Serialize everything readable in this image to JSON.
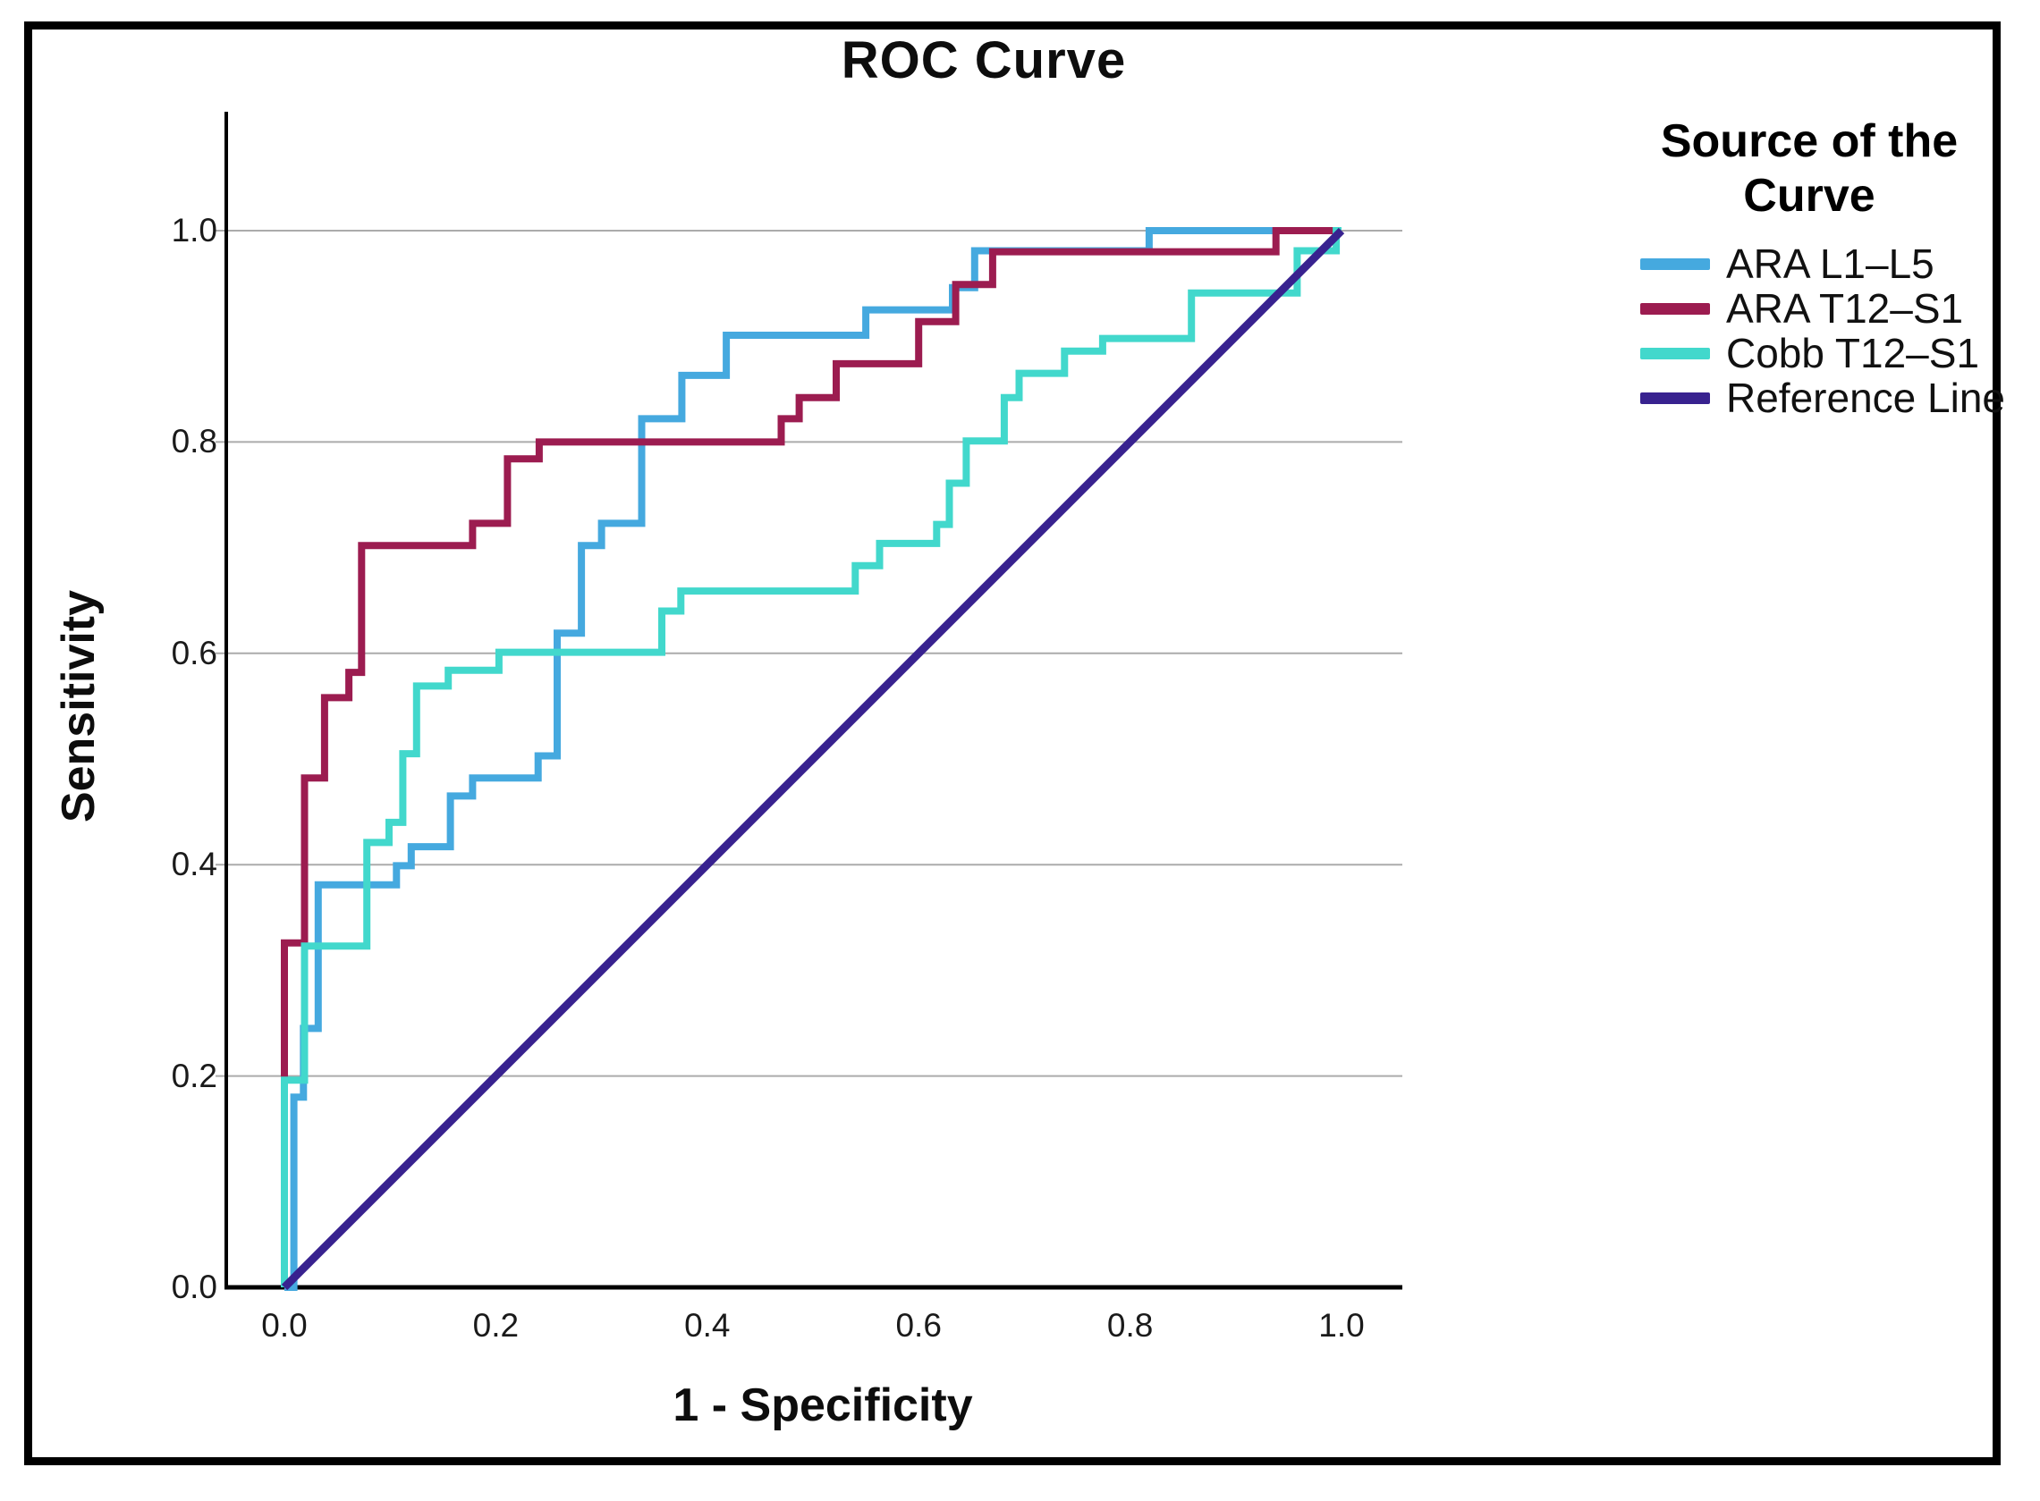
{
  "chart_data": {
    "type": "line",
    "subtype": "roc-step-curves",
    "title": "ROC Curve",
    "xlabel": "1 - Specificity",
    "ylabel": "Sensitivity",
    "xlim": [
      0,
      1
    ],
    "ylim": [
      0,
      1
    ],
    "x_ticks": [
      "0.0",
      "0.2",
      "0.4",
      "0.6",
      "0.8",
      "1.0"
    ],
    "y_ticks": [
      "0.0",
      "0.2",
      "0.4",
      "0.6",
      "0.8",
      "1.0"
    ],
    "grid": "horizontal-only",
    "gridline_color": "#ABABAB",
    "axis_color": "#000000",
    "legend": {
      "title": "Source of the Curve",
      "position": "right"
    },
    "series": [
      {
        "name": "ARA L1–L5",
        "color": "#45A9DF",
        "step_points": [
          [
            0,
            0
          ],
          [
            0.009,
            0
          ],
          [
            0.009,
            0.18
          ],
          [
            0.018,
            0.18
          ],
          [
            0.018,
            0.245
          ],
          [
            0.032,
            0.245
          ],
          [
            0.032,
            0.381
          ],
          [
            0.106,
            0.381
          ],
          [
            0.106,
            0.399
          ],
          [
            0.12,
            0.399
          ],
          [
            0.12,
            0.417
          ],
          [
            0.157,
            0.417
          ],
          [
            0.157,
            0.465
          ],
          [
            0.178,
            0.465
          ],
          [
            0.178,
            0.482
          ],
          [
            0.24,
            0.482
          ],
          [
            0.24,
            0.503
          ],
          [
            0.258,
            0.503
          ],
          [
            0.258,
            0.619
          ],
          [
            0.281,
            0.619
          ],
          [
            0.281,
            0.702
          ],
          [
            0.3,
            0.702
          ],
          [
            0.3,
            0.723
          ],
          [
            0.338,
            0.723
          ],
          [
            0.338,
            0.822
          ],
          [
            0.376,
            0.822
          ],
          [
            0.376,
            0.863
          ],
          [
            0.418,
            0.863
          ],
          [
            0.418,
            0.901
          ],
          [
            0.55,
            0.901
          ],
          [
            0.55,
            0.925
          ],
          [
            0.632,
            0.925
          ],
          [
            0.632,
            0.946
          ],
          [
            0.653,
            0.946
          ],
          [
            0.653,
            0.981
          ],
          [
            0.818,
            0.981
          ],
          [
            0.818,
            1
          ],
          [
            1,
            1
          ]
        ]
      },
      {
        "name": "ARA T12–S1",
        "color": "#9C1C50",
        "step_points": [
          [
            0,
            0
          ],
          [
            0,
            0.326
          ],
          [
            0.019,
            0.326
          ],
          [
            0.019,
            0.482
          ],
          [
            0.038,
            0.482
          ],
          [
            0.038,
            0.558
          ],
          [
            0.061,
            0.558
          ],
          [
            0.061,
            0.582
          ],
          [
            0.073,
            0.582
          ],
          [
            0.073,
            0.702
          ],
          [
            0.178,
            0.702
          ],
          [
            0.178,
            0.723
          ],
          [
            0.211,
            0.723
          ],
          [
            0.211,
            0.784
          ],
          [
            0.241,
            0.784
          ],
          [
            0.241,
            0.8
          ],
          [
            0.47,
            0.8
          ],
          [
            0.47,
            0.822
          ],
          [
            0.487,
            0.822
          ],
          [
            0.487,
            0.842
          ],
          [
            0.522,
            0.842
          ],
          [
            0.522,
            0.874
          ],
          [
            0.6,
            0.874
          ],
          [
            0.6,
            0.914
          ],
          [
            0.635,
            0.914
          ],
          [
            0.635,
            0.949
          ],
          [
            0.67,
            0.949
          ],
          [
            0.67,
            0.98
          ],
          [
            0.938,
            0.98
          ],
          [
            0.938,
            1
          ],
          [
            1,
            1
          ]
        ]
      },
      {
        "name": "Cobb T12–S1",
        "color": "#42D8CC",
        "step_points": [
          [
            0,
            0
          ],
          [
            0,
            0.196
          ],
          [
            0.019,
            0.196
          ],
          [
            0.019,
            0.323
          ],
          [
            0.078,
            0.323
          ],
          [
            0.078,
            0.421
          ],
          [
            0.099,
            0.421
          ],
          [
            0.099,
            0.44
          ],
          [
            0.112,
            0.44
          ],
          [
            0.112,
            0.505
          ],
          [
            0.125,
            0.505
          ],
          [
            0.125,
            0.569
          ],
          [
            0.155,
            0.569
          ],
          [
            0.155,
            0.584
          ],
          [
            0.203,
            0.584
          ],
          [
            0.203,
            0.601
          ],
          [
            0.357,
            0.601
          ],
          [
            0.357,
            0.64
          ],
          [
            0.375,
            0.64
          ],
          [
            0.375,
            0.659
          ],
          [
            0.54,
            0.659
          ],
          [
            0.54,
            0.683
          ],
          [
            0.563,
            0.683
          ],
          [
            0.563,
            0.704
          ],
          [
            0.617,
            0.704
          ],
          [
            0.617,
            0.722
          ],
          [
            0.629,
            0.722
          ],
          [
            0.629,
            0.761
          ],
          [
            0.645,
            0.761
          ],
          [
            0.645,
            0.801
          ],
          [
            0.681,
            0.801
          ],
          [
            0.681,
            0.842
          ],
          [
            0.695,
            0.842
          ],
          [
            0.695,
            0.865
          ],
          [
            0.738,
            0.865
          ],
          [
            0.738,
            0.886
          ],
          [
            0.774,
            0.886
          ],
          [
            0.774,
            0.898
          ],
          [
            0.858,
            0.898
          ],
          [
            0.858,
            0.941
          ],
          [
            0.958,
            0.941
          ],
          [
            0.958,
            0.981
          ],
          [
            0.995,
            0.981
          ],
          [
            0.995,
            1
          ],
          [
            1,
            1
          ]
        ]
      },
      {
        "name": "Reference Line",
        "color": "#38228F",
        "step_points": [
          [
            0,
            0
          ],
          [
            1,
            1
          ]
        ]
      }
    ]
  }
}
